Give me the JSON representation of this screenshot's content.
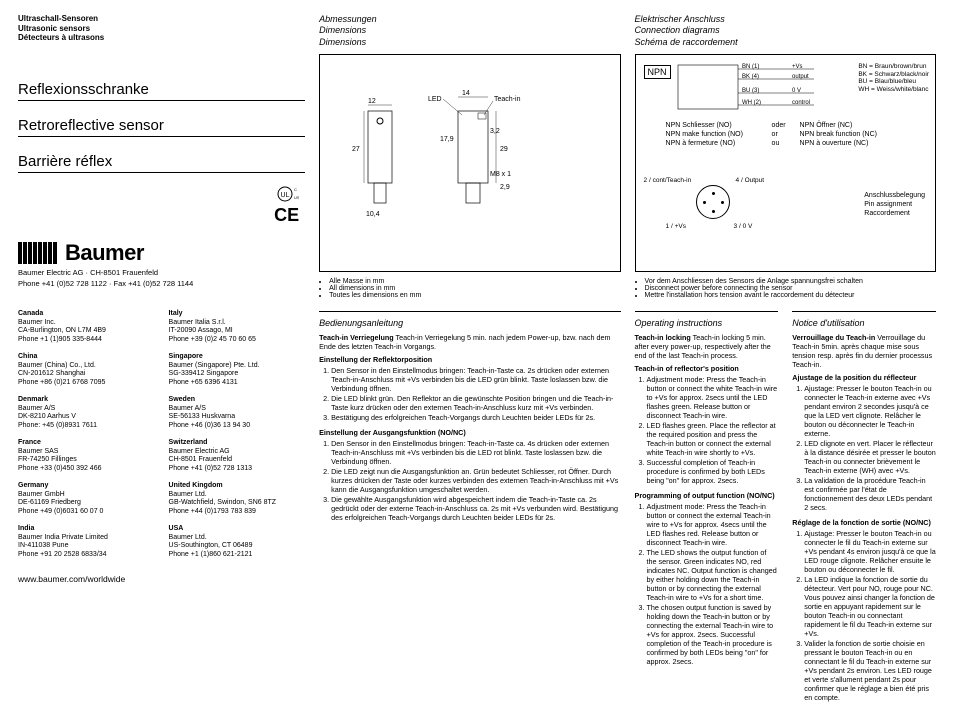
{
  "header": {
    "de": "Ultraschall-Sensoren",
    "en": "Ultrasonic sensors",
    "fr": "Détecteurs à ultrasons"
  },
  "titles": {
    "de": "Reflexionsschranke",
    "en": "Retroreflective sensor",
    "fr": "Barrière réflex"
  },
  "brand": {
    "name": "Baumer",
    "line1": "Baumer Electric AG · CH-8501 Frauenfeld",
    "line2": "Phone +41 (0)52 728 1122 · Fax +41 (0)52 728 1144"
  },
  "worldwide": "www.baumer.com/worldwide",
  "addresses": [
    {
      "c": "Canada",
      "l": [
        "Baumer Inc.",
        "CA-Burlington, ON L7M 4B9",
        "Phone +1 (1)905 335-8444"
      ]
    },
    {
      "c": "Italy",
      "l": [
        "Baumer Italia S.r.l.",
        "IT-20090 Assago, MI",
        "Phone +39 (0)2 45 70 60 65"
      ]
    },
    {
      "c": "China",
      "l": [
        "Baumer (China) Co., Ltd.",
        "CN-201612 Shanghai",
        "Phone +86 (0)21 6768 7095"
      ]
    },
    {
      "c": "Singapore",
      "l": [
        "Baumer (Singapore) Pte. Ltd.",
        "SG-339412 Singapore",
        "Phone +65 6396 4131"
      ]
    },
    {
      "c": "Denmark",
      "l": [
        "Baumer A/S",
        "DK-8210 Aarhus V",
        "Phone: +45 (0)8931 7611"
      ]
    },
    {
      "c": "Sweden",
      "l": [
        "Baumer A/S",
        "SE-56133 Huskvarna",
        "Phone +46 (0)36 13 94 30"
      ]
    },
    {
      "c": "France",
      "l": [
        "Baumer SAS",
        "FR-74250 Fillinges",
        "Phone +33 (0)450 392 466"
      ]
    },
    {
      "c": "Switzerland",
      "l": [
        "Baumer Electric AG",
        "CH-8501 Frauenfeld",
        "Phone +41 (0)52 728 1313"
      ]
    },
    {
      "c": "Germany",
      "l": [
        "Baumer GmbH",
        "DE-61169 Friedberg",
        "Phone +49 (0)6031 60 07 0"
      ]
    },
    {
      "c": "United Kingdom",
      "l": [
        "Baumer Ltd.",
        "GB-Watchfield, Swindon, SN6 8TZ",
        "Phone +44 (0)1793 783 839"
      ]
    },
    {
      "c": "India",
      "l": [
        "Baumer India Private Limited",
        "IN-411038 Pune",
        "Phone +91 20 2528 6833/34"
      ]
    },
    {
      "c": "USA",
      "l": [
        "Baumer Ltd.",
        "US-Southington, CT 06489",
        "Phone +1 (1)860 621-2121"
      ]
    }
  ],
  "dim": {
    "h_de": "Abmessungen",
    "h_en": "Dimensions",
    "h_fr": "Dimensions",
    "notes": [
      "Alle Masse in mm",
      "All dimensions in mm",
      "Toutes les dimensions en mm"
    ],
    "labels": {
      "12": "12",
      "14": "14",
      "27": "27",
      "17_9": "17,9",
      "3_2": "3,2",
      "29": "29",
      "2_9": "2,9",
      "10_4": "10,4",
      "m8": "M8 x 1",
      "led": "LED",
      "teach": "Teach-in"
    }
  },
  "conn": {
    "h_de": "Elektrischer Anschluss",
    "h_en": "Connection diagrams",
    "h_fr": "Schéma de raccordement",
    "npn": "NPN",
    "wires": {
      "bn": "BN (1)",
      "bk": "BK (4)",
      "bu": "BU (3)",
      "wh": "WH (2)",
      "vs": "+Vs",
      "out": "output",
      "zv": "0 V",
      "ctrl": "control"
    },
    "wirekey": [
      "BN = Braun/brown/brun",
      "BK = Schwarz/black/noir",
      "BU = Blau/blue/bleu",
      "WH = Weiss/white/blanc"
    ],
    "no": {
      "de": "NPN Schliesser (NO)",
      "en": "NPN make function (NO)",
      "fr": "NPN à fermeture (NO)"
    },
    "nc": {
      "de": "NPN Öffner (NC)",
      "en": "NPN break function (NC)",
      "fr": "NPN à ouverture (NC)"
    },
    "or": {
      "de": "oder",
      "en": "or",
      "fr": "ou"
    },
    "pins": {
      "p1": "1 / +Vs",
      "p2": "2 / cont/Teach-in",
      "p3": "3 / 0 V",
      "p4": "4 / Output"
    },
    "pinh": {
      "de": "Anschlussbelegung",
      "en": "Pin assignment",
      "fr": "Raccordement"
    },
    "notes": [
      "Vor dem Anschliessen des Sensors die Anlage spannungsfrei schalten",
      "Disconnect power before connecting the sensor",
      "Mettre l'installation hors tension avant le raccordement du détecteur"
    ]
  },
  "instr": {
    "de": {
      "h": "Bedienungsanleitung",
      "lock": "Teach-in Verriegelung 5 min. nach jedem Power-up, bzw. nach dem Ende des letzten Teach-in Vorgangs.",
      "refl_h": "Einstellung der Reflektorposition",
      "refl": [
        "Den Sensor in den Einstellmodus bringen: Teach-in-Taste ca. 2s drücken oder externen Teach-in-Anschluss mit +Vs verbinden bis die LED grün blinkt. Taste loslassen bzw. die Verbindung öffnen.",
        "Die LED blinkt grün. Den Reflektor an die gewünschte Position bringen und die Teach-in-Taste kurz drücken oder den externen Teach-in-Anschluss kurz mit +Vs verbinden.",
        "Bestätigung des erfolgreichen Teach-Vorgangs durch Leuchten beider LEDs für 2s."
      ],
      "out_h": "Einstellung der Ausgangsfunktion (NO/NC)",
      "out": [
        "Den Sensor in den Einstellmodus bringen: Teach-in-Taste ca. 4s drücken oder externen Teach-in-Anschluss mit +Vs verbinden bis die LED rot blinkt. Taste loslassen bzw. die Verbindung öffnen.",
        "Die LED zeigt nun die Ausgangsfunktion an. Grün bedeutet Schliesser, rot Öffner. Durch kurzes drücken der Taste oder kurzes verbinden des externen Teach-in-Anschluss mit +Vs kann die Ausgangsfunktion umgeschaltet werden.",
        "Die gewählte Ausgangsfunktion wird abgespeichert indem die Teach-in-Taste ca. 2s gedrückt oder der externe Teach-in-Anschluss ca. 2s mit +Vs verbunden wird. Bestätigung des erfolgreichen Teach-Vorgangs durch Leuchten beider LEDs für 2s."
      ]
    },
    "en": {
      "h": "Operating instructions",
      "lock": "Teach-in locking 5 min. after every power-up, respectively after the end of the last Teach-in process.",
      "refl_h": "Teach-in of reflector's position",
      "refl": [
        "Adjustment mode: Press the Teach-in button or connect the white Teach-in wire to +Vs for approx. 2secs until the LED flashes green. Release button or disconnect Teach-in wire.",
        "LED flashes green. Place the reflector at the required position and press the Teach-in button or connect the external white Teach-in wire shortly to +Vs.",
        "Successful completion of Teach-in procedure is confirmed by both LEDs being \"on\" for approx. 2secs."
      ],
      "out_h": "Programming of output function (NO/NC)",
      "out": [
        "Adjustment mode: Press the Teach-in button or connect the external Teach-in wire to +Vs for approx. 4secs until the LED flashes red. Release button or disconnect Teach-in wire.",
        "The LED shows the output function of the sensor. Green indicates NO, red indicates NC. Output function is changed by either holding down the Teach-in button or by connecting the external Teach-in wire to +Vs for a short time.",
        "The chosen output function is saved by holding down the Teach-in button or by connecting the external Teach-in wire to +Vs for approx. 2secs. Successful completion of the Teach-in procedure is confirmed by both LEDs being \"on\" for approx. 2secs."
      ]
    },
    "fr": {
      "h": "Notice d'utilisation",
      "lock": "Verrouillage du Teach-in 5min. après chaque mise sous tension resp. après fin du dernier processus Teach-in.",
      "refl_h": "Ajustage de la position du réflecteur",
      "refl": [
        "Ajustage: Presser le bouton Teach-in ou connecter le Teach-in externe avec +Vs pendant environ 2 secondes jusqu'à ce que la LED vert clignote. Relâcher le bouton ou déconnecter le Teach-in externe.",
        "LED clignote en vert. Placer le réflecteur à la distance désirée et presser le bouton Teach-in ou connecter brièvement le Teach-in externe (WH) avec +Vs.",
        "La validation de la procédure Teach-in est confirmée par l'état de fonctionnement des deux LEDs pendant 2 secs."
      ],
      "out_h": "Réglage de la fonction de sortie (NO/NC)",
      "out": [
        "Ajustage: Presser le bouton Teach-in ou connecter le fil du Teach-in externe sur +Vs pendant 4s environ jusqu'à ce que la LED rouge clignote. Relâcher ensuite le bouton ou déconnecter le fil.",
        "La LED indique la fonction de sortie du détecteur. Vert pour NO, rouge pour NC. Vous pouvez ainsi changer la fonction de sortie en appuyant rapidement sur le bouton Teach-in ou connectant rapidement le fil du Teach-in externe sur +Vs.",
        "Valider la fonction de sortie choisie en pressant le bouton Teach-in ou en connectant le fil du Teach-in externe sur +Vs pendant 2s environ. Les LED rouge et verte s'allument pendant 2s pour confirmer que le réglage a bien été pris en compte."
      ]
    }
  }
}
